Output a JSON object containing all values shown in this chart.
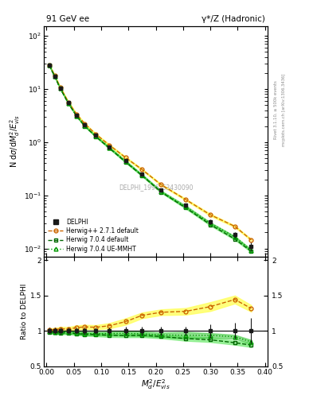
{
  "title_left": "91 GeV ee",
  "title_right": "γ*/Z (Hadronic)",
  "ylabel_main": "N dσ/dM²_d/E²_{vis}",
  "ylabel_ratio": "Ratio to DELPHI",
  "xlabel": "M²_d/E²_{vis}",
  "watermark": "DELPHI_1996_S3430090",
  "right_label_top": "Rivet 3.1.10, ≥ 500k events",
  "right_label_bot": "mcplots.cern.ch [arXiv:1306.3436]",
  "x": [
    0.005,
    0.015,
    0.025,
    0.04,
    0.055,
    0.07,
    0.09,
    0.115,
    0.145,
    0.175,
    0.21,
    0.255,
    0.3,
    0.345,
    0.375
  ],
  "delphi_y": [
    28.0,
    17.5,
    10.5,
    5.5,
    3.2,
    2.1,
    1.35,
    0.82,
    0.45,
    0.25,
    0.125,
    0.065,
    0.032,
    0.018,
    0.011
  ],
  "delphi_yerr": [
    1.2,
    0.8,
    0.5,
    0.25,
    0.15,
    0.1,
    0.06,
    0.04,
    0.025,
    0.015,
    0.008,
    0.004,
    0.003,
    0.002,
    0.002
  ],
  "h271_y": [
    28.5,
    17.8,
    10.8,
    5.65,
    3.35,
    2.22,
    1.42,
    0.88,
    0.51,
    0.305,
    0.158,
    0.083,
    0.043,
    0.026,
    0.0145
  ],
  "h271_lo": [
    28.0,
    17.4,
    10.5,
    5.5,
    3.25,
    2.16,
    1.38,
    0.85,
    0.49,
    0.295,
    0.153,
    0.08,
    0.041,
    0.025,
    0.014
  ],
  "h271_hi": [
    29.0,
    18.2,
    11.1,
    5.8,
    3.45,
    2.28,
    1.46,
    0.91,
    0.53,
    0.315,
    0.163,
    0.086,
    0.045,
    0.027,
    0.015
  ],
  "h704_y": [
    27.6,
    17.1,
    10.2,
    5.35,
    3.08,
    2.0,
    1.28,
    0.77,
    0.42,
    0.235,
    0.115,
    0.058,
    0.028,
    0.015,
    0.0088
  ],
  "h704_lo": [
    27.2,
    16.8,
    10.0,
    5.25,
    3.02,
    1.96,
    1.25,
    0.75,
    0.41,
    0.228,
    0.112,
    0.056,
    0.027,
    0.0145,
    0.0085
  ],
  "h704_hi": [
    28.0,
    17.4,
    10.4,
    5.45,
    3.14,
    2.04,
    1.31,
    0.79,
    0.43,
    0.242,
    0.118,
    0.06,
    0.029,
    0.0155,
    0.0091
  ],
  "h704ue_y": [
    27.8,
    17.2,
    10.3,
    5.42,
    3.12,
    2.02,
    1.3,
    0.79,
    0.435,
    0.24,
    0.118,
    0.061,
    0.03,
    0.0165,
    0.0093
  ],
  "h704ue_lo": [
    27.3,
    16.8,
    10.1,
    5.3,
    3.05,
    1.97,
    1.27,
    0.77,
    0.42,
    0.232,
    0.114,
    0.058,
    0.029,
    0.016,
    0.009
  ],
  "h704ue_hi": [
    28.3,
    17.6,
    10.5,
    5.54,
    3.19,
    2.07,
    1.33,
    0.81,
    0.45,
    0.248,
    0.122,
    0.064,
    0.031,
    0.017,
    0.0096
  ],
  "color_delphi": "#1a1a1a",
  "color_h271": "#cc6600",
  "color_h704": "#006600",
  "color_h704ue": "#009900",
  "color_h271_band": "#ffff66",
  "color_h704_band": "#88ee88",
  "color_h704ue_band": "#44cc44"
}
